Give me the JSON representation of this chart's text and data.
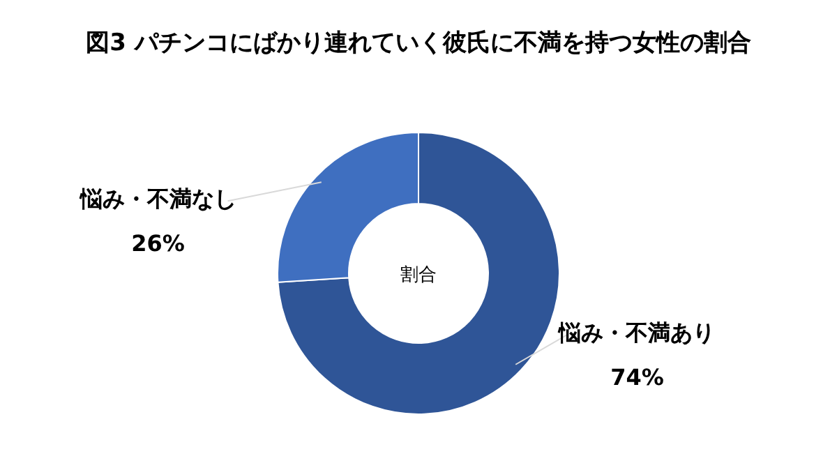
{
  "chart_data": {
    "type": "donut",
    "title": "図3 パチンコにばかり連れていく彼氏に不満を持つ女性の割合",
    "categories": [
      "悩み・不満あり",
      "悩み・不満なし"
    ],
    "values": [
      74,
      26
    ],
    "colors": [
      "#2f5597",
      "#3f6fc0"
    ],
    "value_labels": [
      "74%",
      "26%"
    ],
    "annotations": [
      "割合"
    ]
  }
}
